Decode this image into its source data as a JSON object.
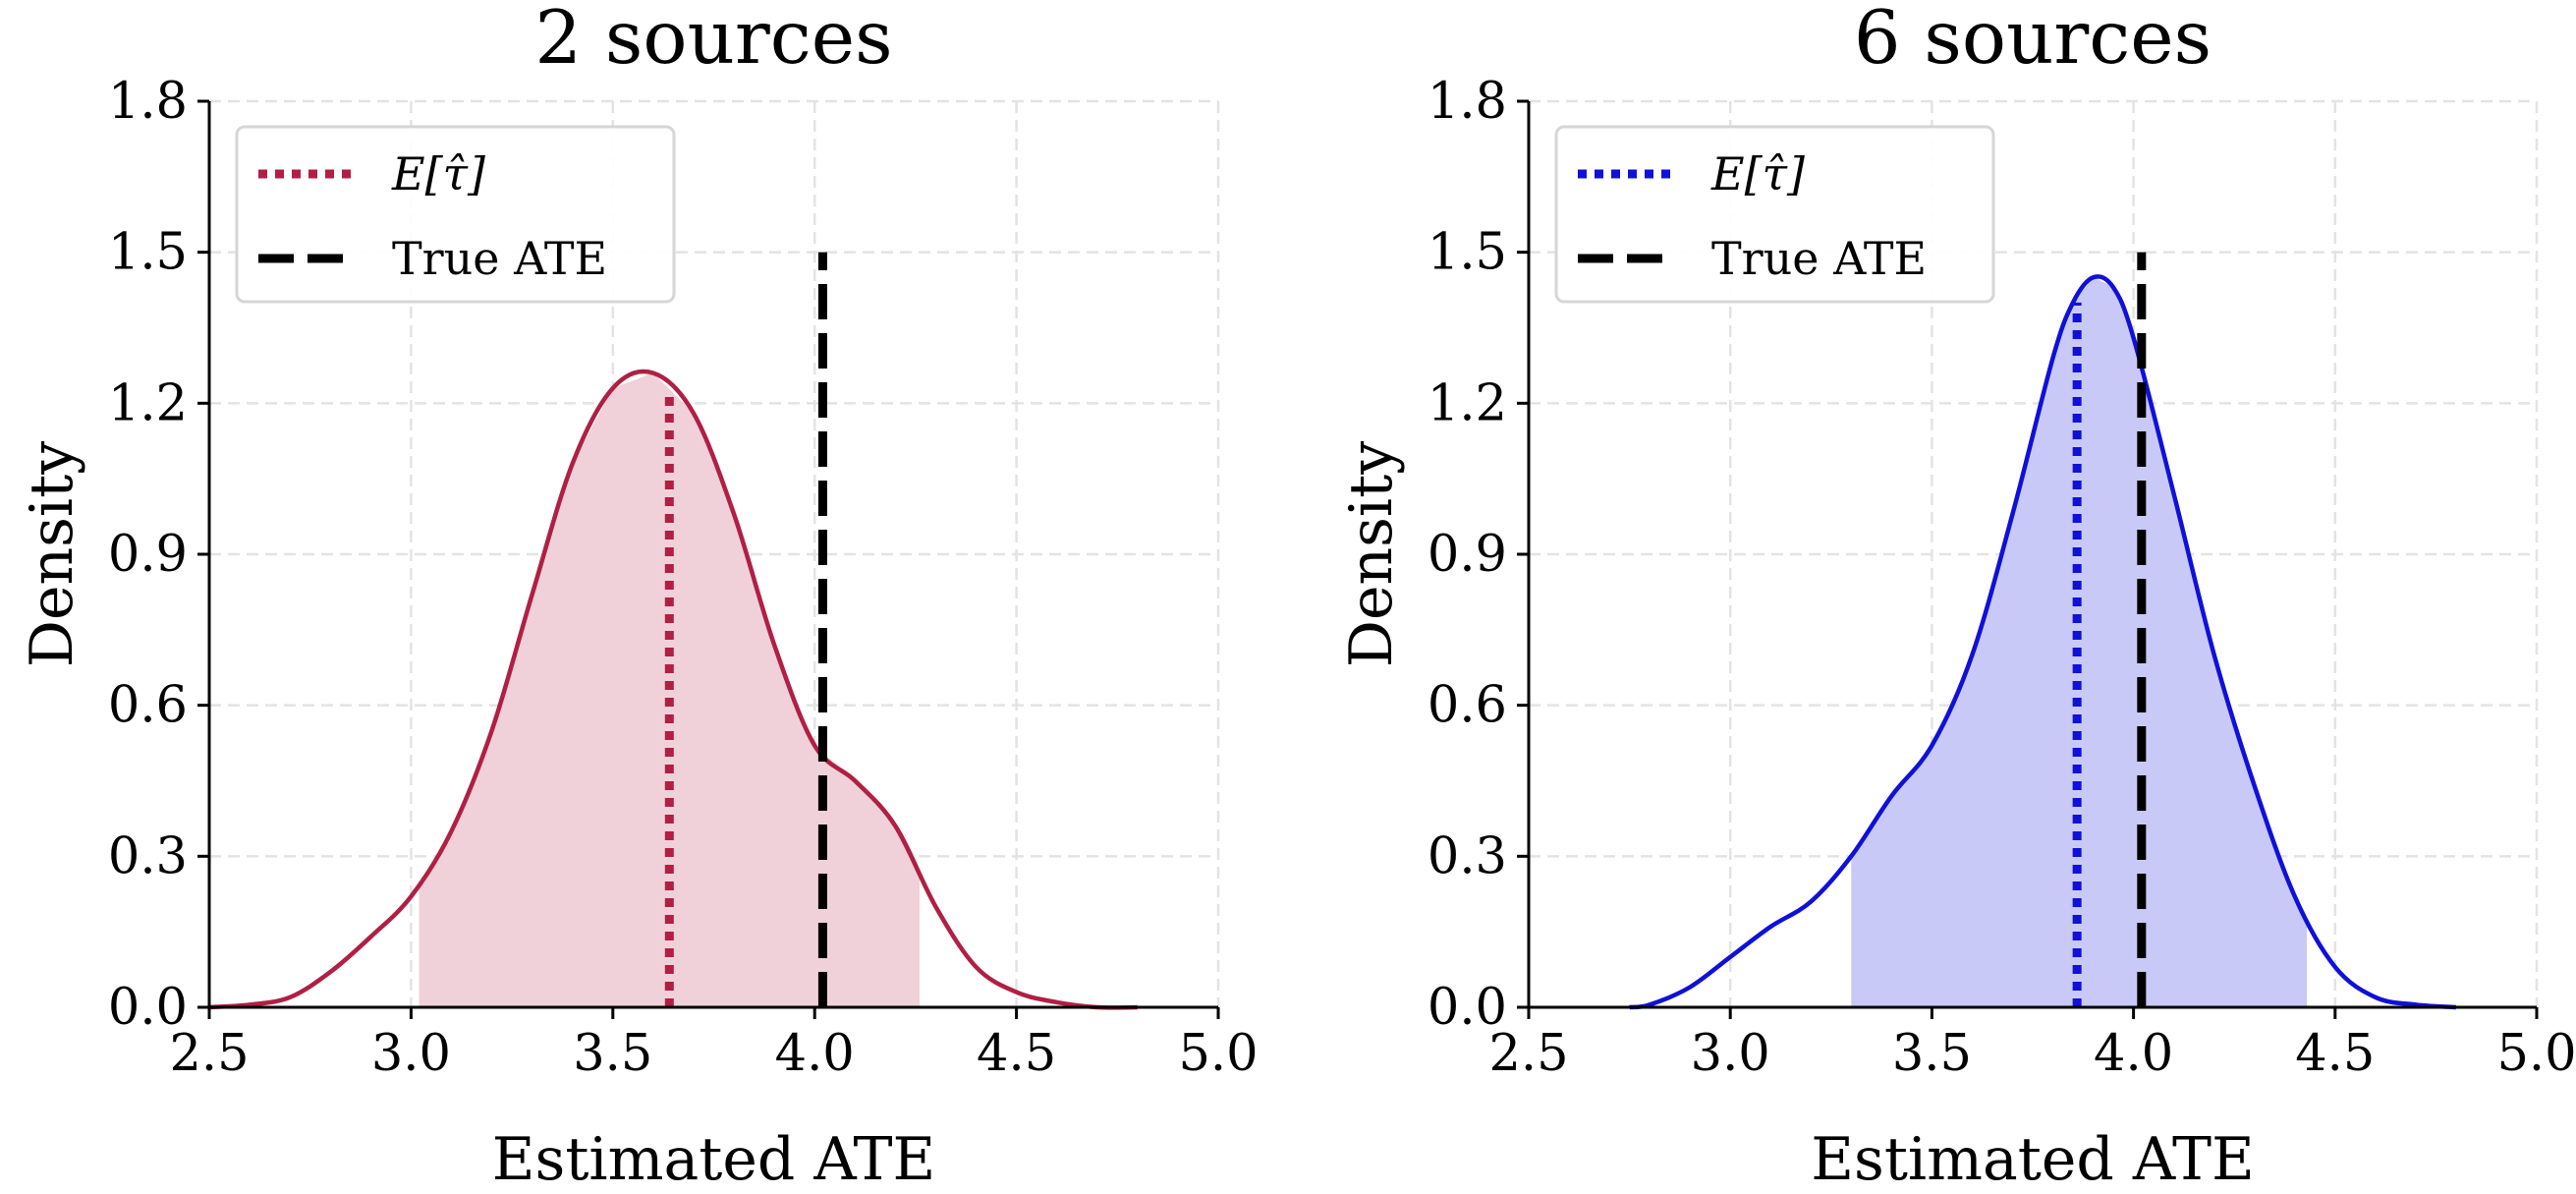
{
  "chart_data": [
    {
      "type": "area",
      "title": "2 sources",
      "xlabel": "Estimated ATE",
      "ylabel": "Density",
      "xlim": [
        2.5,
        5.0
      ],
      "ylim": [
        0.0,
        1.8
      ],
      "xticks": [
        "2.5",
        "3.0",
        "3.5",
        "4.0",
        "4.5",
        "5.0"
      ],
      "yticks": [
        "0.0",
        "0.3",
        "0.6",
        "0.9",
        "1.2",
        "1.5",
        "1.8"
      ],
      "grid": true,
      "legend_position": "top-left",
      "color": "#b01f44",
      "fill_color": "#f0d1d9",
      "kde": {
        "x": [
          2.5,
          2.6,
          2.7,
          2.8,
          2.9,
          3.0,
          3.1,
          3.2,
          3.3,
          3.4,
          3.5,
          3.6,
          3.7,
          3.8,
          3.9,
          4.0,
          4.1,
          4.2,
          4.3,
          4.4,
          4.5,
          4.6,
          4.7,
          4.8
        ],
        "y": [
          0.0,
          0.005,
          0.02,
          0.07,
          0.14,
          0.22,
          0.35,
          0.55,
          0.82,
          1.08,
          1.23,
          1.26,
          1.18,
          0.98,
          0.72,
          0.52,
          0.45,
          0.36,
          0.2,
          0.08,
          0.03,
          0.01,
          0.0,
          0.0
        ]
      },
      "shaded_interval": [
        3.02,
        4.26
      ],
      "mean_estimate": 3.64,
      "mean_line_top": 1.22,
      "true_ate": 4.02,
      "true_ate_line_top": 1.5,
      "legend": [
        {
          "label": "E[τ̂]",
          "style": "dotted"
        },
        {
          "label": "True ATE",
          "style": "dashed"
        }
      ]
    },
    {
      "type": "area",
      "title": "6 sources",
      "xlabel": "Estimated ATE",
      "ylabel": "Density",
      "xlim": [
        2.5,
        5.0
      ],
      "ylim": [
        0.0,
        1.8
      ],
      "xticks": [
        "2.5",
        "3.0",
        "3.5",
        "4.0",
        "4.5",
        "5.0"
      ],
      "yticks": [
        "0.0",
        "0.3",
        "0.6",
        "0.9",
        "1.2",
        "1.5",
        "1.8"
      ],
      "grid": true,
      "legend_position": "top-left",
      "color": "#1010d8",
      "fill_color": "#c9c9f7",
      "kde": {
        "x": [
          2.75,
          2.8,
          2.9,
          3.0,
          3.1,
          3.2,
          3.3,
          3.4,
          3.5,
          3.6,
          3.7,
          3.8,
          3.85,
          3.9,
          3.95,
          4.0,
          4.1,
          4.2,
          4.3,
          4.4,
          4.5,
          4.6,
          4.7,
          4.8
        ],
        "y": [
          0.0,
          0.005,
          0.04,
          0.1,
          0.16,
          0.21,
          0.3,
          0.42,
          0.52,
          0.7,
          0.98,
          1.29,
          1.4,
          1.45,
          1.43,
          1.33,
          1.02,
          0.7,
          0.44,
          0.22,
          0.08,
          0.02,
          0.005,
          0.0
        ]
      },
      "shaded_interval": [
        3.3,
        4.43
      ],
      "mean_estimate": 3.86,
      "mean_line_top": 1.4,
      "true_ate": 4.02,
      "true_ate_line_top": 1.5,
      "legend": [
        {
          "label": "E[τ̂]",
          "style": "dotted"
        },
        {
          "label": "True ATE",
          "style": "dashed"
        }
      ]
    }
  ]
}
